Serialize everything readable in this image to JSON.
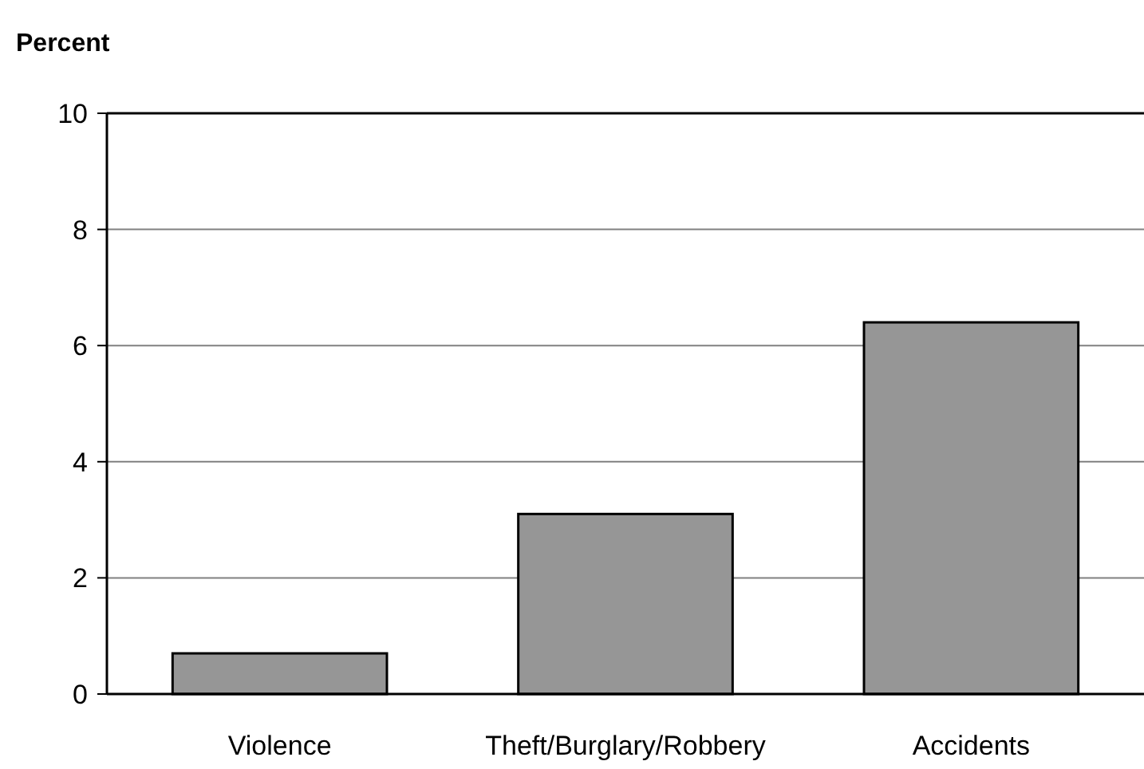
{
  "chart_data": {
    "type": "bar",
    "ylabel": "Percent",
    "categories": [
      "Violence",
      "Theft/Burglary/Robbery",
      "Accidents"
    ],
    "values": [
      0.7,
      3.1,
      6.4
    ],
    "color": "#969696",
    "ylim": [
      0,
      10
    ],
    "yticks": [
      0,
      2,
      4,
      6,
      8,
      10
    ],
    "grid": "y"
  }
}
